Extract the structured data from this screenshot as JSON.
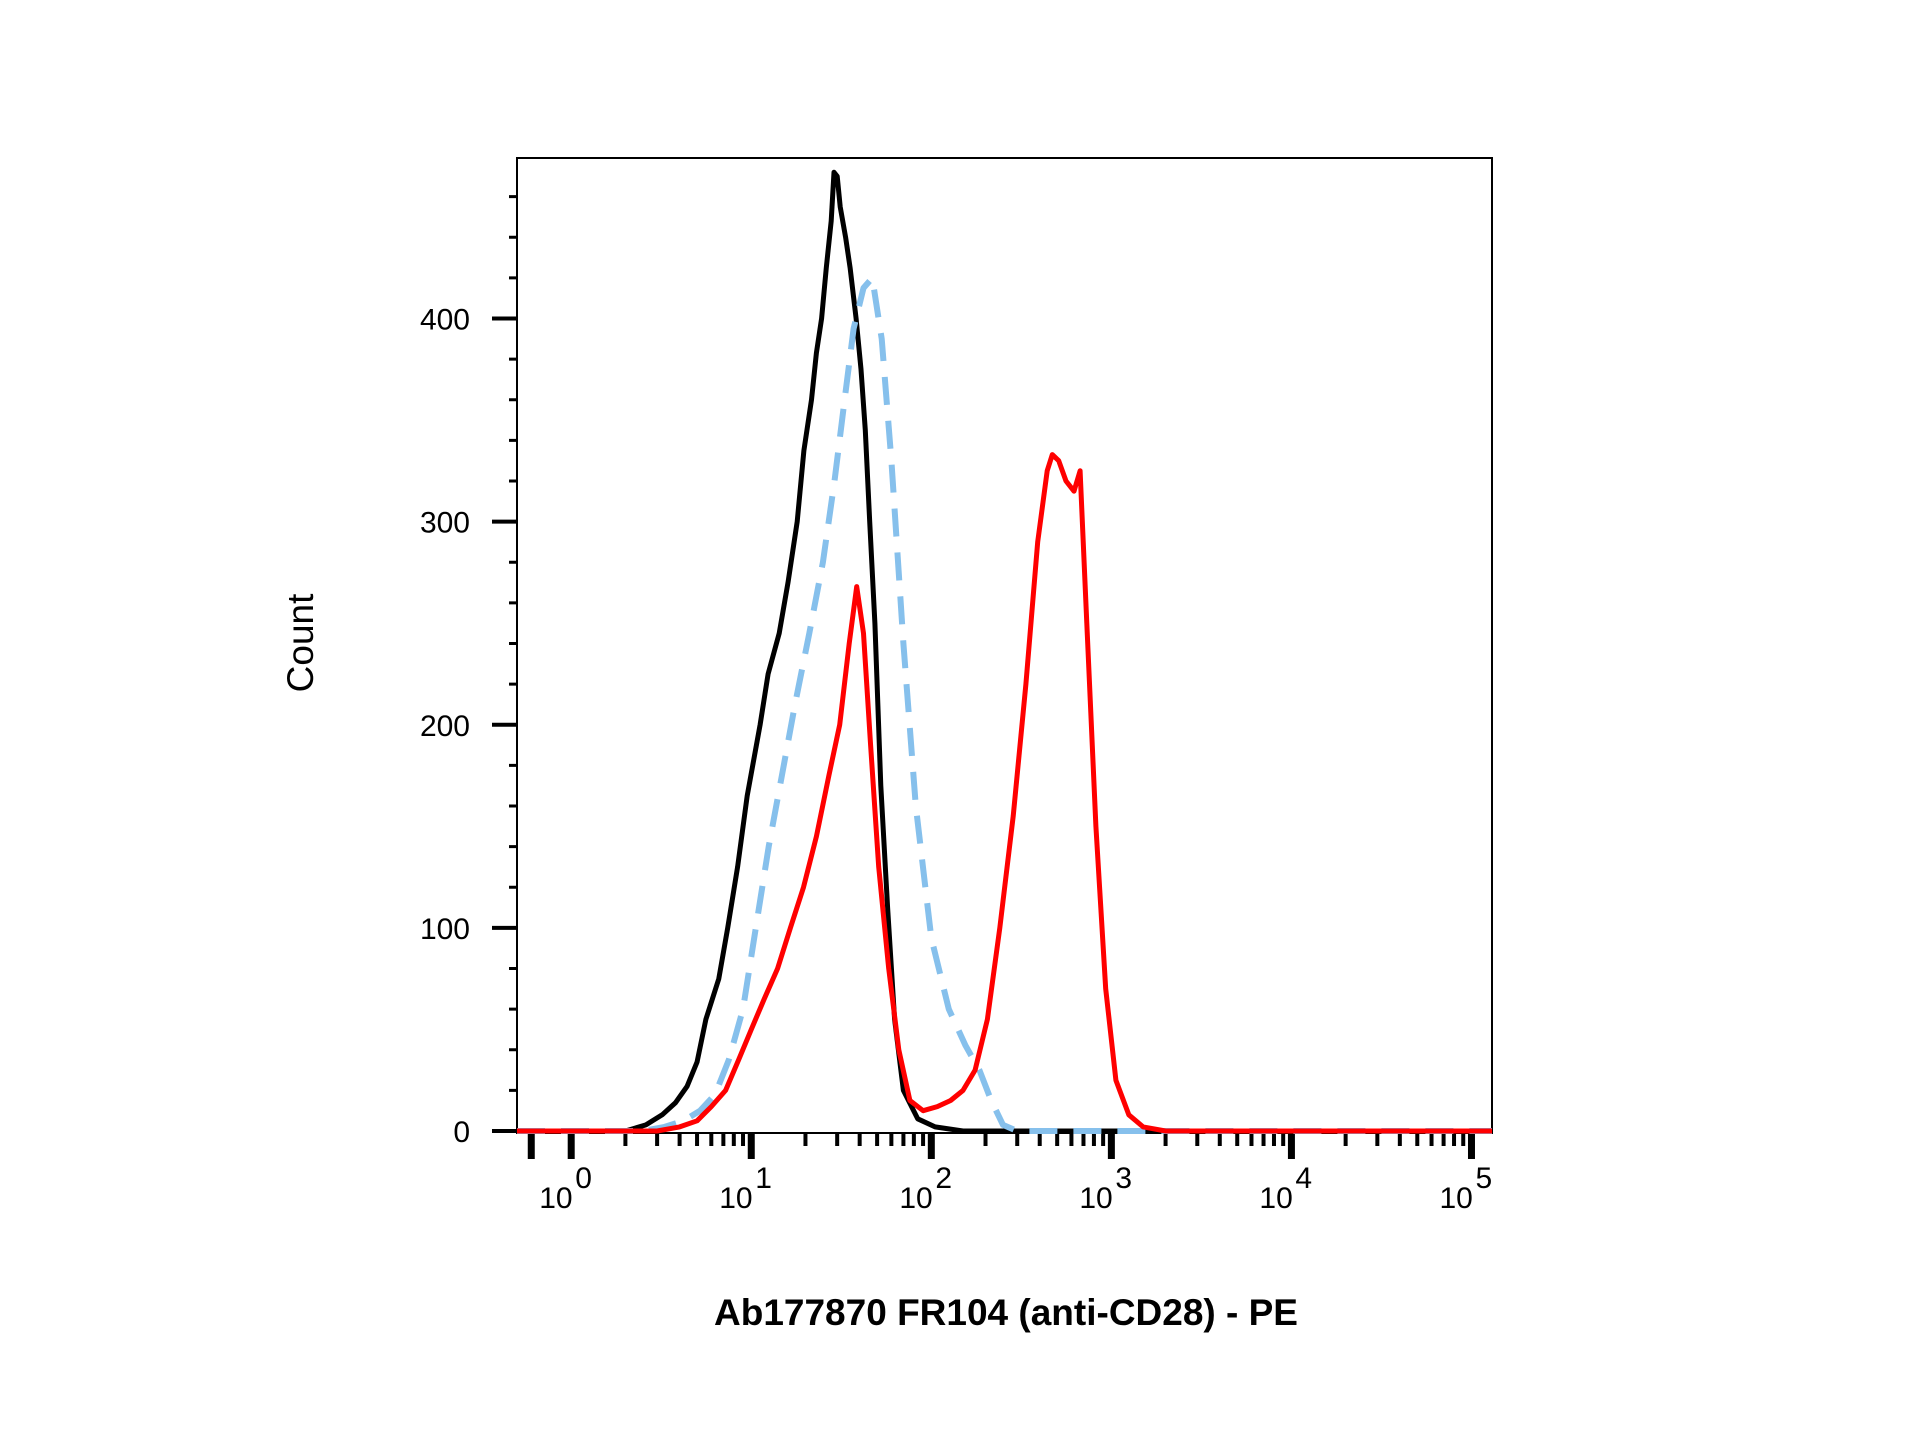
{
  "chart_data": {
    "type": "line",
    "title": "",
    "xlabel": "Ab177870 FR104 (anti-CD28) - PE",
    "ylabel": "Count",
    "xscale": "log",
    "xlim": [
      0.5,
      130000
    ],
    "ylim": [
      0,
      480
    ],
    "grid": false,
    "x_ticks": [
      {
        "value": 1,
        "base": "10",
        "exp": "0"
      },
      {
        "value": 10,
        "base": "10",
        "exp": "1"
      },
      {
        "value": 100,
        "base": "10",
        "exp": "2"
      },
      {
        "value": 1000,
        "base": "10",
        "exp": "3"
      },
      {
        "value": 10000,
        "base": "10",
        "exp": "4"
      },
      {
        "value": 100000,
        "base": "10",
        "exp": "5"
      }
    ],
    "y_ticks": [
      {
        "value": 0,
        "label": "0"
      },
      {
        "value": 100,
        "label": "100"
      },
      {
        "value": 200,
        "label": "200"
      },
      {
        "value": 300,
        "label": "300"
      },
      {
        "value": 400,
        "label": "400"
      }
    ],
    "series": [
      {
        "color": "#000000",
        "style": "solid",
        "x": [
          0.5,
          2.0,
          2.6,
          3.2,
          3.8,
          4.4,
          5.0,
          5.6,
          6.6,
          7.4,
          8.4,
          9.5,
          11.2,
          12.4,
          14.3,
          16.0,
          18.0,
          19.6,
          21.6,
          23.0,
          24.6,
          26.1,
          27.8,
          28.8,
          30.0,
          31.2,
          33.4,
          35.4,
          38.2,
          40.7,
          43.0,
          45.5,
          48.6,
          52.4,
          57.2,
          62.5,
          70.0,
          84.0,
          105.0,
          150.0,
          300.0,
          1000.0,
          130000.0
        ],
        "y": [
          0,
          0,
          3,
          8,
          14,
          22,
          34,
          55,
          75,
          100,
          130,
          165,
          200,
          225,
          245,
          270,
          300,
          335,
          360,
          383,
          400,
          425,
          448,
          472,
          470,
          455,
          440,
          425,
          400,
          375,
          345,
          300,
          250,
          170,
          110,
          55,
          20,
          6,
          2,
          0,
          0,
          0,
          0
        ]
      },
      {
        "color": "#86C0EC",
        "style": "dashed",
        "x": [
          0.5,
          2.5,
          3.3,
          4.2,
          5.2,
          6.3,
          7.5,
          9.0,
          10.6,
          12.5,
          14.8,
          17.5,
          21.0,
          25.0,
          29.0,
          33.0,
          37.0,
          42.0,
          47.0,
          53.0,
          60.0,
          70.0,
          82.0,
          100.0,
          125.0,
          155.0,
          185.0,
          215.0,
          250.0,
          300.0,
          500.0,
          130000.0
        ],
        "y": [
          0,
          0,
          2,
          5,
          10,
          18,
          35,
          60,
          100,
          140,
          175,
          210,
          245,
          280,
          320,
          360,
          395,
          415,
          420,
          390,
          330,
          240,
          160,
          95,
          60,
          42,
          30,
          15,
          3,
          0,
          0,
          0
        ]
      },
      {
        "color": "#FF0000",
        "style": "solid",
        "x": [
          0.5,
          3.0,
          4.0,
          5.0,
          6.0,
          7.2,
          8.5,
          10.0,
          11.8,
          14.0,
          16.5,
          19.5,
          23.0,
          27.0,
          31.0,
          35.0,
          38.5,
          42.0,
          46.0,
          51.0,
          58.0,
          66.0,
          76.0,
          90.0,
          108.0,
          128.0,
          150.0,
          175.0,
          205.0,
          240.0,
          285.0,
          335.0,
          390.0,
          440.0,
          470.0,
          510.0,
          560.0,
          620.0,
          670.0,
          730.0,
          820.0,
          930.0,
          1060.0,
          1250.0,
          1500.0,
          2000.0,
          130000.0
        ],
        "y": [
          0,
          0,
          2,
          5,
          12,
          20,
          35,
          50,
          65,
          80,
          100,
          120,
          145,
          175,
          200,
          240,
          268,
          245,
          190,
          130,
          80,
          40,
          15,
          10,
          12,
          15,
          20,
          30,
          55,
          100,
          155,
          220,
          290,
          325,
          333,
          330,
          320,
          315,
          325,
          250,
          150,
          70,
          25,
          8,
          2,
          0,
          0
        ]
      }
    ]
  }
}
